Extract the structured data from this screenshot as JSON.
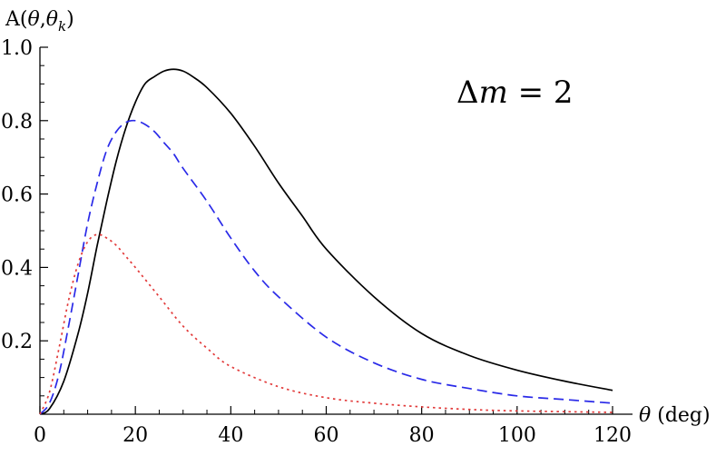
{
  "chart_data": {
    "type": "line",
    "title": "",
    "xlabel": {
      "symbol": "θ",
      "unit": " (deg)"
    },
    "ylabel": {
      "prefix": "A(",
      "sym1": "θ",
      "sep": ",",
      "sym2": "θ",
      "sub": "k",
      "suffix": ")"
    },
    "xlim": [
      0,
      120
    ],
    "ylim": [
      0,
      1.0
    ],
    "x_ticks": [
      0,
      20,
      40,
      60,
      80,
      100,
      120
    ],
    "x_tick_labels": [
      "0",
      "20",
      "40",
      "60",
      "80",
      "100",
      "120"
    ],
    "y_ticks": [
      0.2,
      0.4,
      0.6,
      0.8,
      1.0
    ],
    "y_tick_labels": [
      "0.2",
      "0.4",
      "0.6",
      "0.8",
      "1.0"
    ],
    "grid": false,
    "annotation": {
      "lhs": "Δ",
      "var": "m",
      "rhs": " = 2"
    },
    "series": [
      {
        "style": "solid",
        "color": "#000000",
        "x": [
          0,
          2,
          5,
          8,
          10,
          12,
          14,
          16,
          18,
          20,
          22,
          24,
          26,
          28,
          30,
          32,
          35,
          40,
          45,
          50,
          55,
          60,
          70,
          80,
          90,
          100,
          110,
          120
        ],
        "y": [
          0,
          0.015,
          0.09,
          0.22,
          0.33,
          0.46,
          0.58,
          0.69,
          0.78,
          0.85,
          0.9,
          0.92,
          0.935,
          0.94,
          0.935,
          0.92,
          0.89,
          0.82,
          0.73,
          0.63,
          0.54,
          0.45,
          0.32,
          0.22,
          0.16,
          0.12,
          0.09,
          0.065
        ]
      },
      {
        "style": "dashed",
        "color": "#2a2ae8",
        "x": [
          0,
          2,
          4,
          6,
          8,
          10,
          12,
          14,
          16,
          18,
          20,
          22,
          24,
          26,
          28,
          30,
          35,
          40,
          45,
          50,
          60,
          70,
          80,
          90,
          100,
          110,
          120
        ],
        "y": [
          0,
          0.03,
          0.11,
          0.24,
          0.38,
          0.52,
          0.63,
          0.72,
          0.77,
          0.795,
          0.8,
          0.79,
          0.77,
          0.74,
          0.71,
          0.67,
          0.58,
          0.48,
          0.39,
          0.32,
          0.21,
          0.14,
          0.095,
          0.07,
          0.05,
          0.04,
          0.03
        ]
      },
      {
        "style": "dotted",
        "color": "#e23a3a",
        "x": [
          0,
          2,
          4,
          6,
          8,
          10,
          12,
          14,
          16,
          18,
          20,
          25,
          30,
          35,
          40,
          50,
          60,
          70,
          80,
          90,
          100,
          120
        ],
        "y": [
          0,
          0.06,
          0.18,
          0.31,
          0.41,
          0.47,
          0.49,
          0.48,
          0.46,
          0.43,
          0.4,
          0.32,
          0.24,
          0.18,
          0.13,
          0.075,
          0.045,
          0.03,
          0.02,
          0.013,
          0.009,
          0.005
        ]
      }
    ]
  }
}
